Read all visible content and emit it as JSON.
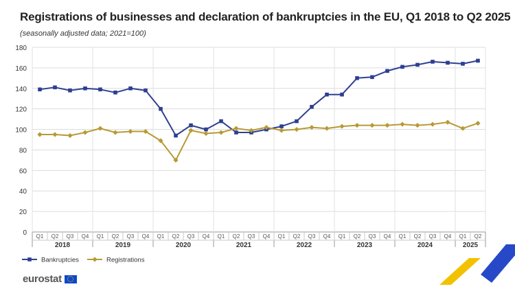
{
  "chart_data": {
    "type": "line",
    "title": "Registrations of businesses and declaration of bankruptcies in the EU, Q1 2018 to Q2 2025",
    "subtitle": "(seasonally adjusted data; 2021=100)",
    "xlabel": "",
    "ylabel": "",
    "ylim": [
      0,
      180
    ],
    "yticks": [
      0,
      20,
      40,
      60,
      80,
      100,
      120,
      140,
      160,
      180
    ],
    "grid": true,
    "legend_position": "bottom-left",
    "quarters": [
      "Q1",
      "Q2",
      "Q3",
      "Q4",
      "Q1",
      "Q2",
      "Q3",
      "Q4",
      "Q1",
      "Q2",
      "Q3",
      "Q4",
      "Q1",
      "Q2",
      "Q3",
      "Q4",
      "Q1",
      "Q2",
      "Q3",
      "Q4",
      "Q1",
      "Q2",
      "Q3",
      "Q4",
      "Q1",
      "Q2",
      "Q3",
      "Q4",
      "Q1",
      "Q2"
    ],
    "years": [
      "2018",
      "2019",
      "2020",
      "2021",
      "2022",
      "2023",
      "2024",
      "2025"
    ],
    "series": [
      {
        "name": "Bankruptcies",
        "color": "#2e3f91",
        "marker": "square",
        "values": [
          139,
          141,
          138,
          140,
          139,
          136,
          140,
          138,
          120,
          94,
          104,
          100,
          108,
          97,
          97,
          100,
          103,
          108,
          122,
          134,
          134,
          150,
          151,
          157,
          161,
          163,
          166,
          165,
          164,
          167
        ]
      },
      {
        "name": "Registrations",
        "color": "#b79a35",
        "marker": "diamond",
        "values": [
          95,
          95,
          94,
          97,
          101,
          97,
          98,
          98,
          89,
          70,
          99,
          96,
          97,
          101,
          99,
          102,
          99,
          100,
          102,
          101,
          103,
          104,
          104,
          104,
          105,
          104,
          105,
          107,
          101,
          106
        ]
      }
    ]
  },
  "brand": {
    "name": "eurostat",
    "flag_color": "#0e47cb"
  }
}
